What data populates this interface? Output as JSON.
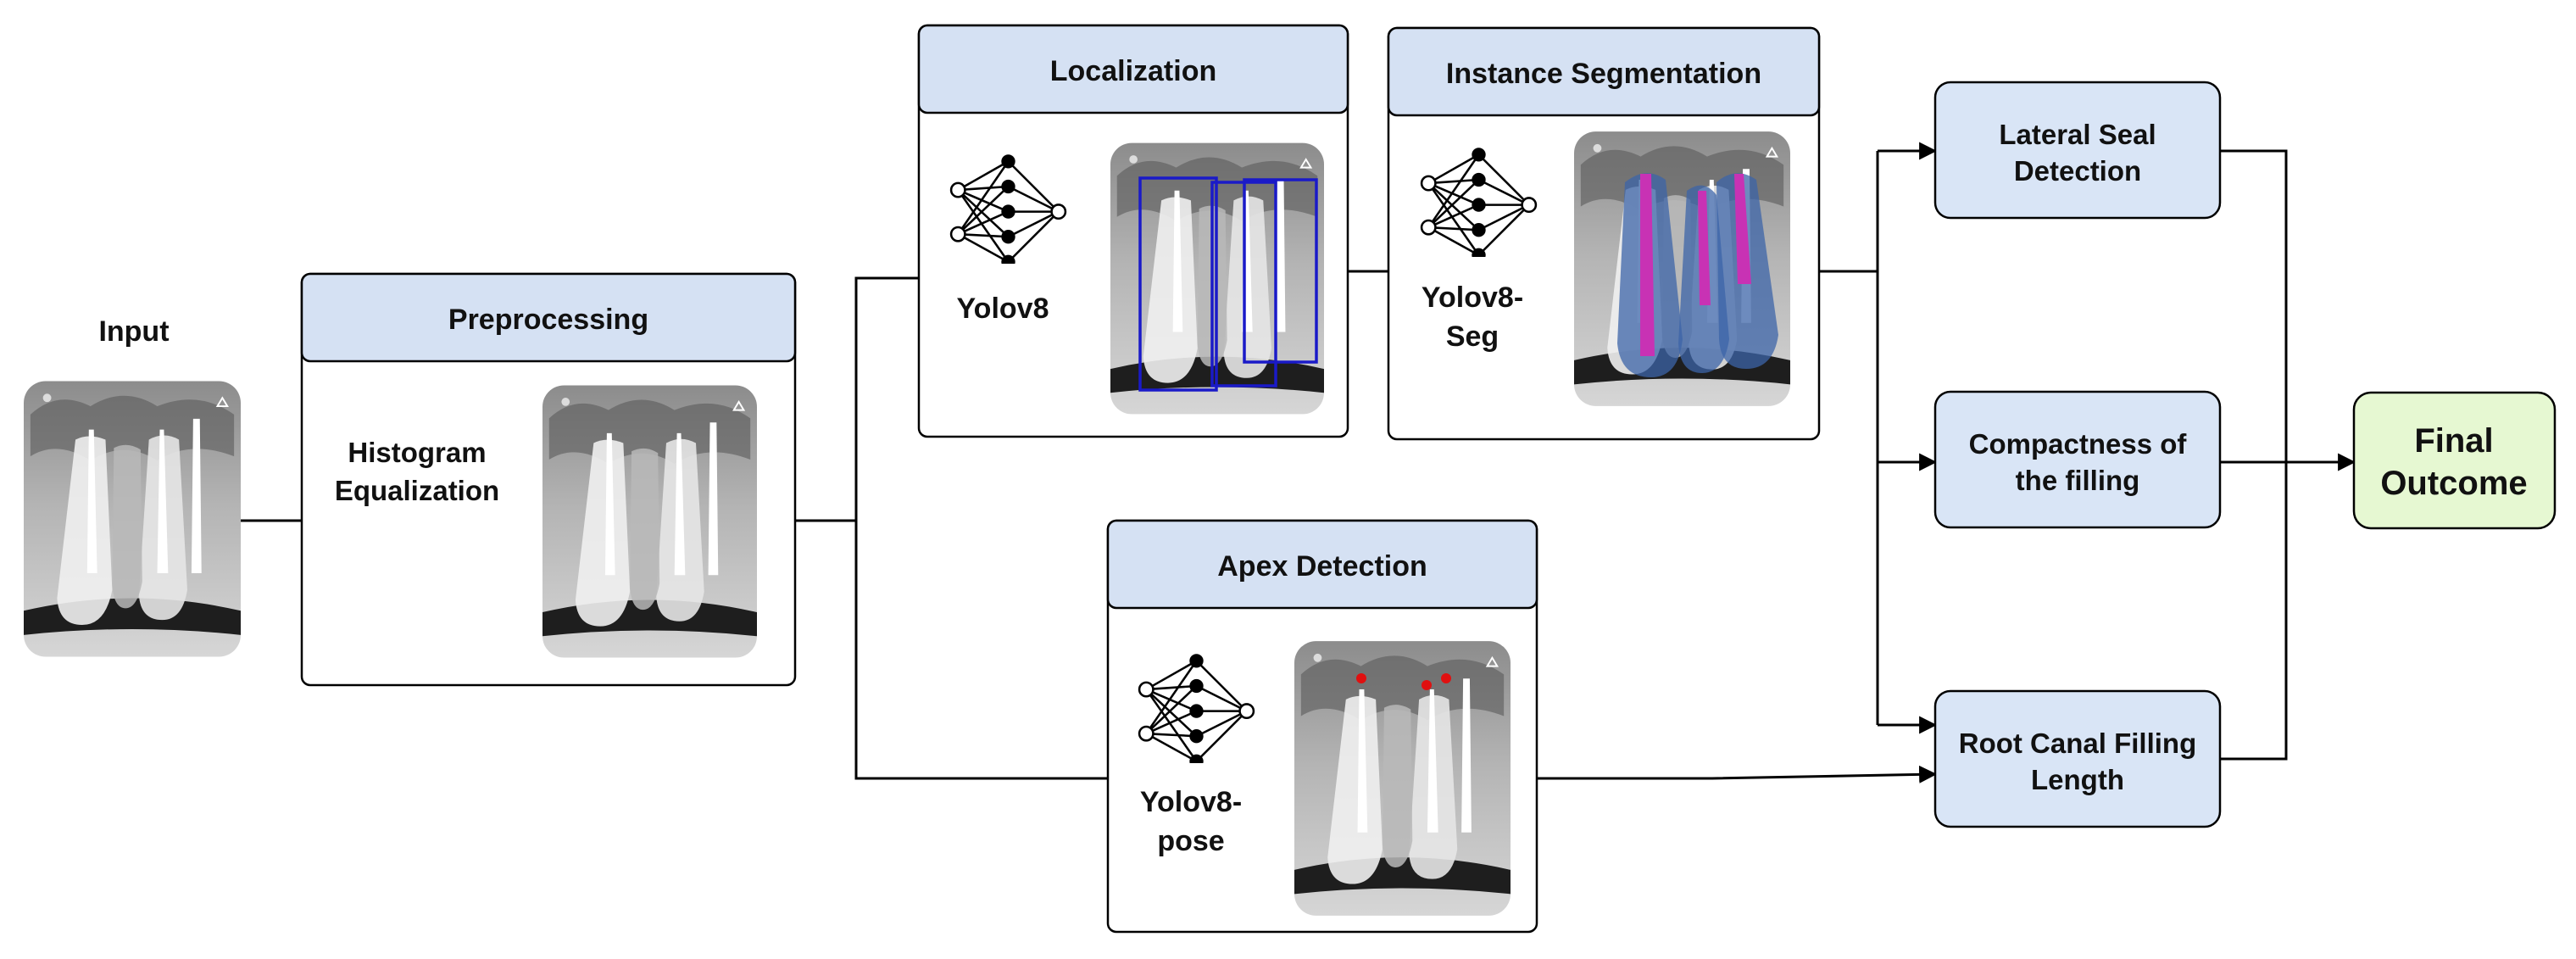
{
  "input": {
    "title": "Input"
  },
  "preprocessing": {
    "title": "Preprocessing",
    "method_line1": "Histogram",
    "method_line2": "Equalization"
  },
  "localization": {
    "title": "Localization",
    "model": "Yolov8"
  },
  "segmentation": {
    "title": "Instance Segmentation",
    "model_line1": "Yolov8-",
    "model_line2": "Seg"
  },
  "apex": {
    "title": "Apex Detection",
    "model_line1": "Yolov8-",
    "model_line2": "pose"
  },
  "outputs": {
    "lateral_line1": "Lateral Seal",
    "lateral_line2": "Detection",
    "compact_line1": "Compactness of",
    "compact_line2": "the filling",
    "root_line1": "Root Canal Filling",
    "root_line2": "Length"
  },
  "final": {
    "line1": "Final",
    "line2": "Outcome"
  },
  "colors": {
    "header_fill": "#d5e1f3",
    "output_fill": "#d9e5f6",
    "final_fill": "#e6f8d2",
    "mask_fill": "#3c64a8",
    "canal_fill": "#c832b4",
    "bbox_stroke": "#1a1ac8",
    "apex_point": "#e01010"
  },
  "icons": [
    "xray-image-icon",
    "neural-network-icon"
  ]
}
